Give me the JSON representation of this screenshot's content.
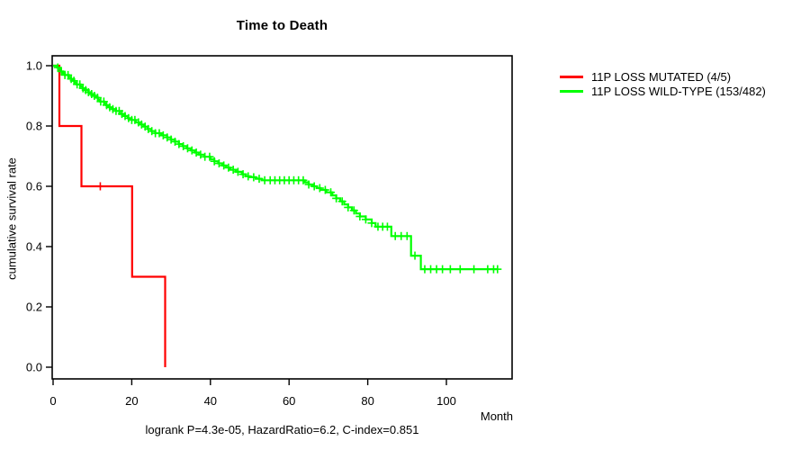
{
  "background": "#ffffff",
  "axis_color": "#000000",
  "chart_data": {
    "type": "line",
    "subtype": "kaplan_meier_step",
    "title": "Time to Death",
    "xlabel": "Month",
    "ylabel": "cumulative survival rate",
    "footnote": "logrank P=4.3e-05, HazardRatio=6.2, C-index=0.851",
    "xlim": [
      0,
      115
    ],
    "ylim": [
      0.0,
      1.0
    ],
    "xticks": [
      0,
      20,
      40,
      60,
      80,
      100
    ],
    "yticks": [
      0.0,
      0.2,
      0.4,
      0.6,
      0.8,
      1.0
    ],
    "grid": false,
    "legend_position": "right-outside",
    "series": [
      {
        "name": "11P LOSS MUTATED (4/5)",
        "color": "#ff0000",
        "steps": [
          [
            0,
            1.0
          ],
          [
            1.6,
            0.8
          ],
          [
            7.2,
            0.6
          ],
          [
            20.1,
            0.3
          ],
          [
            28.5,
            0.0
          ]
        ],
        "censor_times": [
          12.0
        ],
        "end_time": 28.5
      },
      {
        "name": "11P LOSS WILD-TYPE (153/482)",
        "color": "#00ff00",
        "steps": [
          [
            0,
            1.0
          ],
          [
            1,
            0.994
          ],
          [
            1.5,
            0.988
          ],
          [
            2,
            0.981
          ],
          [
            2.5,
            0.975
          ],
          [
            3,
            0.969
          ],
          [
            4,
            0.962
          ],
          [
            4.5,
            0.956
          ],
          [
            5,
            0.95
          ],
          [
            5.5,
            0.944
          ],
          [
            6,
            0.938
          ],
          [
            7,
            0.931
          ],
          [
            7.5,
            0.925
          ],
          [
            8,
            0.919
          ],
          [
            9,
            0.912
          ],
          [
            9.5,
            0.906
          ],
          [
            10,
            0.9
          ],
          [
            11,
            0.894
          ],
          [
            11.5,
            0.887
          ],
          [
            12,
            0.881
          ],
          [
            13,
            0.875
          ],
          [
            13.5,
            0.869
          ],
          [
            14,
            0.862
          ],
          [
            15,
            0.856
          ],
          [
            16,
            0.85
          ],
          [
            17,
            0.84
          ],
          [
            18,
            0.833
          ],
          [
            19,
            0.826
          ],
          [
            20,
            0.82
          ],
          [
            21,
            0.812
          ],
          [
            22,
            0.805
          ],
          [
            23,
            0.798
          ],
          [
            24,
            0.79
          ],
          [
            25,
            0.783
          ],
          [
            26,
            0.776
          ],
          [
            27.5,
            0.769
          ],
          [
            29,
            0.762
          ],
          [
            30,
            0.755
          ],
          [
            31,
            0.748
          ],
          [
            32,
            0.74
          ],
          [
            33,
            0.733
          ],
          [
            34,
            0.726
          ],
          [
            35,
            0.719
          ],
          [
            36,
            0.712
          ],
          [
            37,
            0.705
          ],
          [
            38.5,
            0.698
          ],
          [
            40,
            0.69
          ],
          [
            41,
            0.683
          ],
          [
            42,
            0.676
          ],
          [
            43,
            0.669
          ],
          [
            44,
            0.662
          ],
          [
            45,
            0.655
          ],
          [
            46.5,
            0.648
          ],
          [
            48,
            0.64
          ],
          [
            49,
            0.633
          ],
          [
            50,
            0.63
          ],
          [
            51.5,
            0.625
          ],
          [
            53,
            0.62
          ],
          [
            64,
            0.613
          ],
          [
            65,
            0.606
          ],
          [
            66,
            0.6
          ],
          [
            67,
            0.594
          ],
          [
            68,
            0.588
          ],
          [
            69.5,
            0.58
          ],
          [
            71,
            0.57
          ],
          [
            72,
            0.56
          ],
          [
            73,
            0.55
          ],
          [
            74,
            0.54
          ],
          [
            75,
            0.53
          ],
          [
            76,
            0.52
          ],
          [
            77,
            0.51
          ],
          [
            78,
            0.5
          ],
          [
            79.5,
            0.49
          ],
          [
            81,
            0.478
          ],
          [
            82,
            0.466
          ],
          [
            86,
            0.435
          ],
          [
            91,
            0.37
          ],
          [
            93.5,
            0.325
          ]
        ],
        "censor_times": [
          1.2,
          2.1,
          3.0,
          3.8,
          4.6,
          5.3,
          6.1,
          6.8,
          7.6,
          8.3,
          9.0,
          9.8,
          10.5,
          11.3,
          12.1,
          12.9,
          13.6,
          14.4,
          15.2,
          16.0,
          16.8,
          17.5,
          18.3,
          19.2,
          20.0,
          20.8,
          21.7,
          22.5,
          23.4,
          24.2,
          25.1,
          26.0,
          27.0,
          28.0,
          29.0,
          30.0,
          31.0,
          32.0,
          33.1,
          34.2,
          35.3,
          36.4,
          37.5,
          38.6,
          39.8,
          41.0,
          42.2,
          43.4,
          44.6,
          45.8,
          47.0,
          48.3,
          49.6,
          51.0,
          52.4,
          53.8,
          55.2,
          56.4,
          57.6,
          58.8,
          60.0,
          61.2,
          62.4,
          63.6,
          65.0,
          66.4,
          67.8,
          69.2,
          70.6,
          72.0,
          73.5,
          75.0,
          76.5,
          78.0,
          79.5,
          81.0,
          82.6,
          83.8,
          85.0,
          87.0,
          88.5,
          90.0,
          92.0,
          94.5,
          96.0,
          97.5,
          99.0,
          101.0,
          103.5,
          107.0,
          110.5,
          112.0,
          113.0
        ],
        "end_time": 113
      }
    ]
  }
}
